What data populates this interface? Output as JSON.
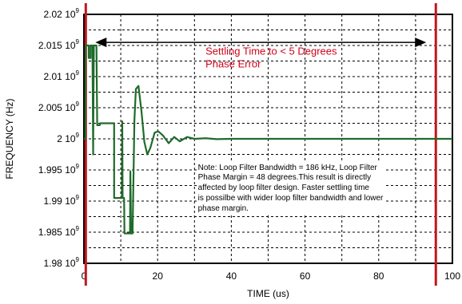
{
  "chart_data": {
    "type": "line",
    "title": "",
    "xlabel": "TIME (us)",
    "ylabel": "FREQUENCY (Hz)",
    "xlim": [
      0,
      100
    ],
    "ylim": [
      1980000000.0,
      2020000000.0
    ],
    "grid": true,
    "x_ticks": [
      {
        "value": 0,
        "label": "0"
      },
      {
        "value": 20,
        "label": "20"
      },
      {
        "value": 40,
        "label": "40"
      },
      {
        "value": 60,
        "label": "60"
      },
      {
        "value": 80,
        "label": "80"
      },
      {
        "value": 100,
        "label": "100"
      }
    ],
    "y_ticks": [
      {
        "value": 2020000000.0,
        "mantissa": "2.02 10",
        "exp": "9"
      },
      {
        "value": 2015000000.0,
        "mantissa": "2.015 10",
        "exp": "9"
      },
      {
        "value": 2010000000.0,
        "mantissa": "2.01 10",
        "exp": "9"
      },
      {
        "value": 2005000000.0,
        "mantissa": "2.005 10",
        "exp": "9"
      },
      {
        "value": 2000000000.0,
        "mantissa": "2 10",
        "exp": "9"
      },
      {
        "value": 1995000000.0,
        "mantissa": "1.995 10",
        "exp": "9"
      },
      {
        "value": 1990000000.0,
        "mantissa": "1.99 10",
        "exp": "9"
      },
      {
        "value": 1985000000.0,
        "mantissa": "1.985 10",
        "exp": "9"
      },
      {
        "value": 1980000000.0,
        "mantissa": "1.98 10",
        "exp": "9"
      }
    ],
    "series_color": "#1f6b2b",
    "marker_color": "#c0171d",
    "series": [
      {
        "points": [
          [
            0.0,
            2.0
          ],
          [
            0.4,
            2.0
          ],
          [
            0.5,
            2.015
          ],
          [
            1.3,
            2.015
          ],
          [
            1.3,
            2.013
          ],
          [
            1.8,
            2.013
          ],
          [
            1.8,
            2.015
          ],
          [
            2.3,
            2.015
          ],
          [
            2.4,
            2.0072
          ],
          [
            2.5,
            1.9975
          ],
          [
            2.6,
            2.0072
          ],
          [
            2.7,
            2.015
          ],
          [
            3.4,
            2.015
          ],
          [
            3.6,
            2.0022
          ],
          [
            4.3,
            2.0022
          ],
          [
            4.4,
            2.0025
          ],
          [
            8.2,
            2.0025
          ],
          [
            8.2,
            1.9905
          ],
          [
            10.3,
            1.9905
          ],
          [
            10.4,
            2.0028
          ],
          [
            10.5,
            1.9905
          ],
          [
            10.9,
            1.9905
          ],
          [
            11.0,
            1.9848
          ],
          [
            12.5,
            1.9848
          ],
          [
            12.6,
            1.9948
          ],
          [
            12.8,
            1.9848
          ],
          [
            13.2,
            1.9848
          ],
          [
            13.4,
            1.992
          ],
          [
            13.7,
            2.003
          ],
          [
            14.1,
            2.008
          ],
          [
            14.8,
            2.0085
          ],
          [
            15.6,
            2.0045
          ],
          [
            16.4,
            1.9995
          ],
          [
            17.2,
            1.9975
          ],
          [
            18.0,
            1.9985
          ],
          [
            19.2,
            2.001
          ],
          [
            20.2,
            2.0012
          ],
          [
            21.5,
            2.0005
          ],
          [
            23.0,
            1.9993
          ],
          [
            24.5,
            2.0003
          ],
          [
            26.0,
            1.9996
          ],
          [
            28.0,
            2.0003
          ],
          [
            30.0,
            2.0
          ],
          [
            33.0,
            2.0001
          ],
          [
            36.0,
            1.99995
          ],
          [
            40.0,
            2.0
          ],
          [
            60.0,
            2.0
          ],
          [
            80.0,
            2.0
          ],
          [
            100.0,
            2.0
          ]
        ],
        "y_scale_note": "y values in units of 10^9 Hz"
      }
    ],
    "vertical_markers": [
      0.5,
      95.5
    ],
    "arrow": {
      "x_start": 0.5,
      "x_end": 95.5,
      "y": 2.0155
    },
    "annotation_red": [
      "Settling Time to < 5 Degrees",
      "Phase Error"
    ],
    "annotation_red_pos": {
      "x": 33,
      "y": 2.0135
    },
    "note": "Note: Loop Filter Bandwidth = 186 kHz, Loop Filter Phase Margin = 48 degrees.This result is directly affected by loop filter design. Faster settling time is possilbe with wider loop filter bandwidth and lower phase margin.",
    "note_lines": [
      "Note: Loop Filter Bandwidth = 186 kHz, Loop Filter",
      "Phase Margin = 48 degrees.This result is directly",
      "affected by loop filter design. Faster settling time",
      "is possilbe with wider loop filter bandwidth and lower",
      "phase margin."
    ]
  }
}
